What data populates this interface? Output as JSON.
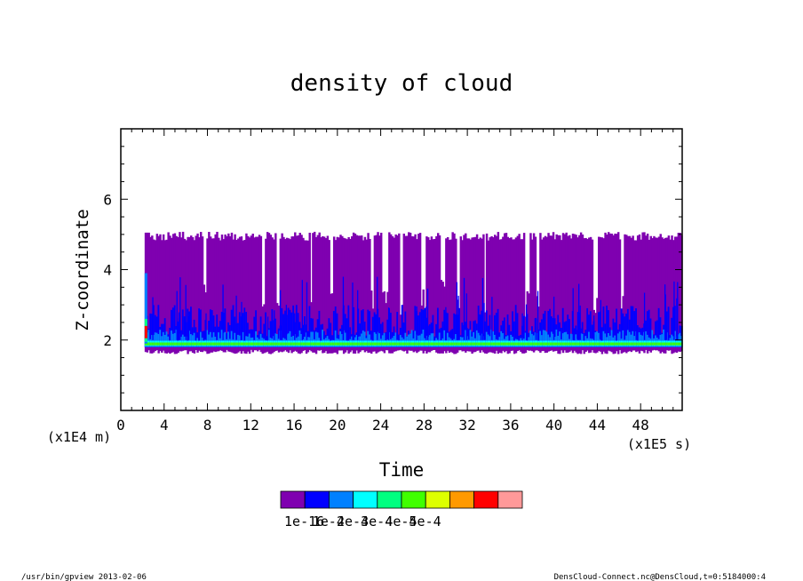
{
  "chart_data": {
    "type": "heatmap",
    "title": "density of cloud",
    "xlabel": "Time",
    "ylabel": "Z-coordinate",
    "x_unit": "(x1E5 s)",
    "y_unit": "(x1E4 m)",
    "xlim": [
      0,
      51.84
    ],
    "ylim": [
      0,
      8
    ],
    "x_ticks": [
      0,
      4,
      8,
      12,
      16,
      20,
      24,
      28,
      32,
      36,
      40,
      44,
      48
    ],
    "x_tick_labels": [
      "0",
      "4",
      "8",
      "12",
      "16",
      "20",
      "24",
      "28",
      "32",
      "36",
      "40",
      "44",
      "48"
    ],
    "y_ticks": [
      2,
      4,
      6
    ],
    "y_tick_labels": [
      "2",
      "4",
      "6"
    ],
    "x_minor_step": 1,
    "y_minor_step": 0.5,
    "data_extent": {
      "x_start": 2.2,
      "x_end": 51.84,
      "cloud_top_typical": 4.95,
      "cloud_bottom_typical": 1.6,
      "dense_layer_center": 1.9
    },
    "legend": {
      "colors": [
        "#7f00b0",
        "#0000ff",
        "#0080ff",
        "#00ffff",
        "#00ff80",
        "#40ff00",
        "#ddff00",
        "#ff9900",
        "#ff0000",
        "#ff9999"
      ],
      "labels": [
        "1e-16",
        "1e-4",
        "2e-4",
        "3e-4",
        "4e-4",
        "5e-4"
      ]
    },
    "grid": false
  },
  "footer": {
    "left": "/usr/bin/gpview   2013-02-06",
    "right": "DensCloud-Connect.nc@DensCloud,t=0:5184000:4"
  }
}
